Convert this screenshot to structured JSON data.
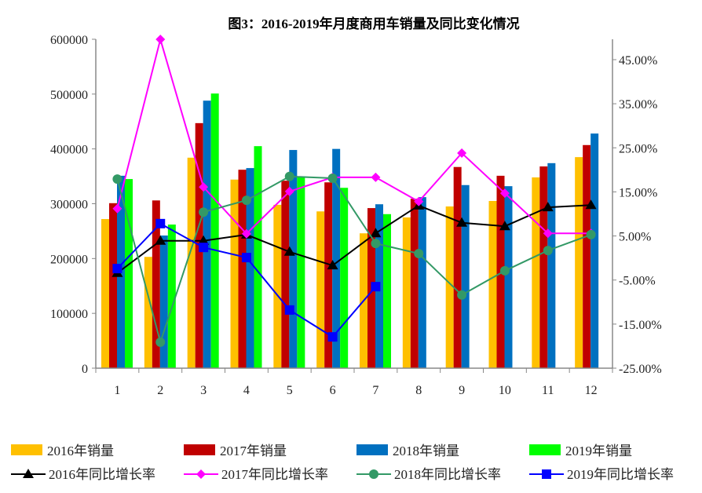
{
  "chart_data": {
    "type": "bar",
    "title": "图3：2016-2019年月度商用车销量及同比变化情况",
    "xlabel": "",
    "ylabel": "",
    "categories": [
      "1",
      "2",
      "3",
      "4",
      "5",
      "6",
      "7",
      "8",
      "9",
      "10",
      "11",
      "12"
    ],
    "ylim": [
      0,
      600000
    ],
    "yticks": [
      "0",
      "100000",
      "200000",
      "300000",
      "400000",
      "500000",
      "600000"
    ],
    "y2lim": [
      -25,
      50
    ],
    "y2ticks": [
      "-25.00%",
      "-15.00%",
      "-5.00%",
      "5.00%",
      "15.00%",
      "25.00%",
      "35.00%",
      "45.00%"
    ],
    "series": [
      {
        "name": "2016年销量",
        "type": "bar",
        "color": "#FFC000",
        "values": [
          272000,
          203000,
          384000,
          344000,
          298000,
          286000,
          246000,
          275000,
          295000,
          305000,
          348000,
          385000
        ]
      },
      {
        "name": "2017年销量",
        "type": "bar",
        "color": "#C00000",
        "values": [
          301000,
          306000,
          447000,
          362000,
          342000,
          339000,
          292000,
          309000,
          367000,
          351000,
          368000,
          407000
        ]
      },
      {
        "name": "2018年销量",
        "type": "bar",
        "color": "#0070C0",
        "values": [
          351000,
          242000,
          488000,
          365000,
          398000,
          400000,
          299000,
          312000,
          334000,
          332000,
          374000,
          428000
        ]
      },
      {
        "name": "2019年销量",
        "type": "bar",
        "color": "#00FF00",
        "values": [
          345000,
          262000,
          501000,
          405000,
          349000,
          329000,
          281000,
          null,
          null,
          null,
          null,
          null
        ]
      },
      {
        "name": "2016年同比增长率",
        "type": "line",
        "axis": "right",
        "unit": "%",
        "color": "#000000",
        "marker": "triangle",
        "values": [
          -3.4,
          3.9,
          3.9,
          5.3,
          1.4,
          -1.7,
          5.6,
          11.9,
          8.0,
          7.2,
          11.5,
          12.0
        ]
      },
      {
        "name": "2017年同比增长率",
        "type": "line",
        "axis": "right",
        "unit": "%",
        "color": "#FF00FF",
        "marker": "diamond",
        "values": [
          11.2,
          49.6,
          16.1,
          5.5,
          15.1,
          18.3,
          18.3,
          12.8,
          23.8,
          14.7,
          5.6,
          5.6
        ]
      },
      {
        "name": "2018年同比增长率",
        "type": "line",
        "axis": "right",
        "unit": "%",
        "color": "#339966",
        "marker": "circle",
        "values": [
          17.9,
          -19.1,
          10.4,
          13.1,
          18.5,
          18.1,
          3.3,
          1.0,
          -8.4,
          -2.9,
          1.7,
          5.3
        ]
      },
      {
        "name": "2019年同比增长率",
        "type": "line",
        "axis": "right",
        "unit": "%",
        "color": "#0000FF",
        "marker": "square",
        "values": [
          -2.4,
          7.8,
          2.4,
          0.1,
          -11.8,
          -17.9,
          -6.5,
          null,
          null,
          null,
          null,
          null
        ]
      }
    ],
    "legend": "bottom",
    "grid": false
  }
}
